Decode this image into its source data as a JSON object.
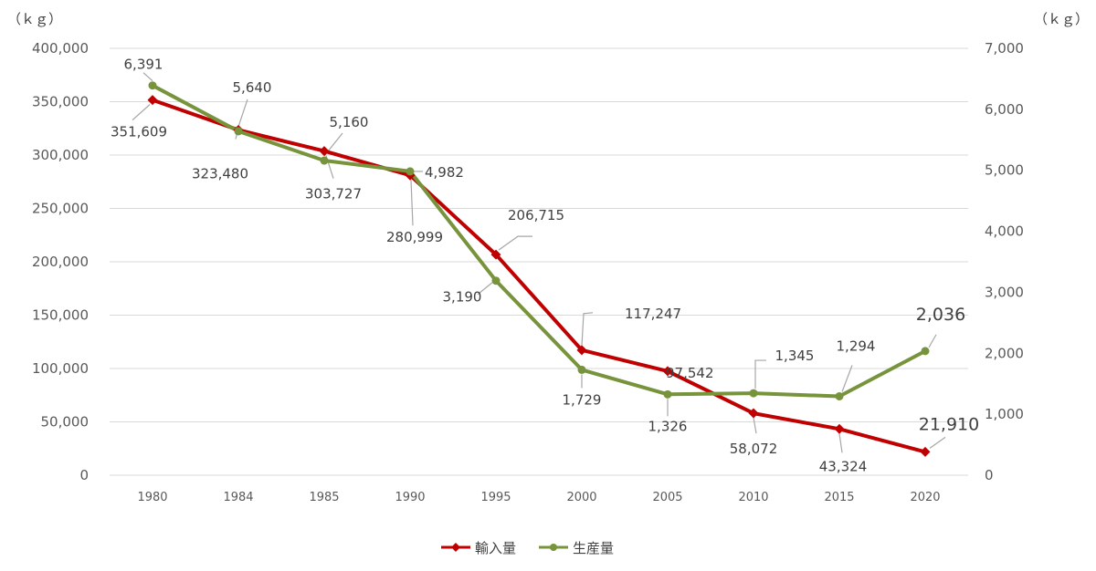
{
  "chart_data": {
    "type": "line",
    "categories": [
      "1980",
      "1984",
      "1985",
      "1990",
      "1995",
      "2000",
      "2005",
      "2010",
      "2015",
      "2020"
    ],
    "series": [
      {
        "name": "輸入量",
        "axis": "left",
        "color": "#c00000",
        "marker": "diamond",
        "values": [
          351609,
          323480,
          303727,
          280999,
          206715,
          117247,
          97542,
          58072,
          43324,
          21910
        ],
        "labels": [
          "351,609",
          "323,480",
          "303,727",
          "280,999",
          "206,715",
          "117,247",
          "97,542",
          "58,072",
          "43,324",
          "21,910"
        ]
      },
      {
        "name": "生産量",
        "axis": "right",
        "color": "#77933c",
        "marker": "circle",
        "values": [
          6391,
          5640,
          5160,
          4982,
          3190,
          1729,
          1326,
          1345,
          1294,
          2036
        ],
        "labels": [
          "6,391",
          "5,640",
          "5,160",
          "4,982",
          "3,190",
          "1,729",
          "1,326",
          "1,345",
          "1,294",
          "2,036"
        ]
      }
    ],
    "y_left": {
      "unit": "（ｋｇ）",
      "min": 0,
      "max": 400000,
      "ticks": [
        "400,000",
        "350,000",
        "300,000",
        "250,000",
        "200,000",
        "150,000",
        "100,000",
        "50,000",
        "0"
      ]
    },
    "y_right": {
      "unit": "（ｋｇ）",
      "min": 0,
      "max": 7000,
      "ticks": [
        "7,000",
        "6,000",
        "5,000",
        "4,000",
        "3,000",
        "2,000",
        "1,000",
        "0"
      ]
    },
    "grid": true,
    "legend_position": "bottom",
    "title": "",
    "xlabel": ""
  }
}
